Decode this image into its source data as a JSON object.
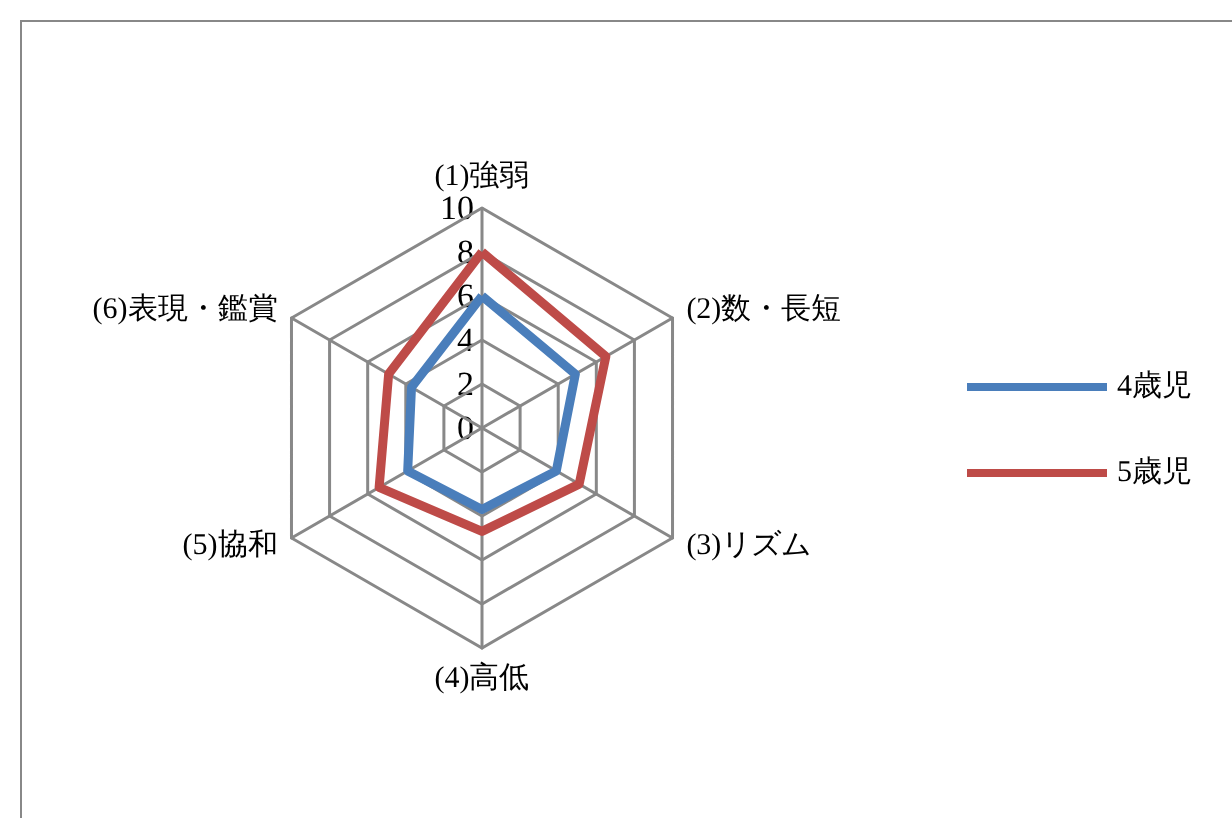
{
  "chart_data": {
    "type": "radar",
    "categories": [
      "(1)強弱",
      "(2)数・長短",
      "(3)リズム",
      "(4)高低",
      "(5)協和",
      "(6)表現・鑑賞"
    ],
    "series": [
      {
        "name": "4歳児",
        "color": "#4a7ebb",
        "values": [
          6,
          4.9,
          3.9,
          3.7,
          3.9,
          3.7
        ]
      },
      {
        "name": "5歳児",
        "color": "#be4b48",
        "values": [
          8,
          6.5,
          5.1,
          4.7,
          5.4,
          4.9
        ]
      }
    ],
    "ylim": [
      0,
      10
    ],
    "yticks": [
      0,
      2,
      4,
      6,
      8,
      10
    ],
    "grid": true,
    "legend": "right",
    "marker": "none",
    "line_style": "solid"
  }
}
